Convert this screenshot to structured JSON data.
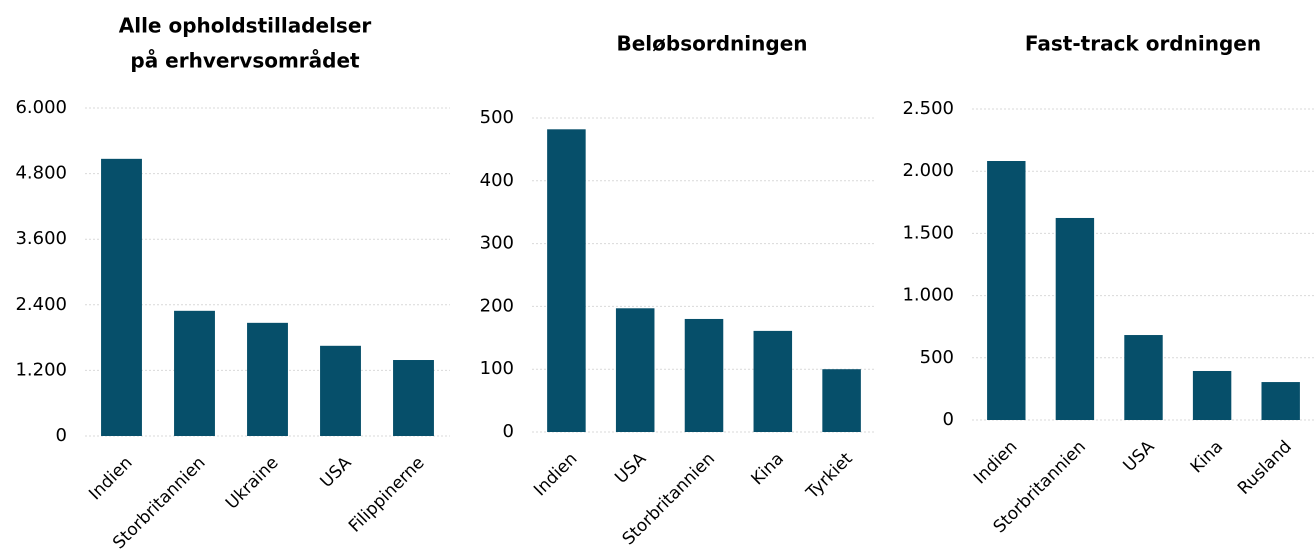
{
  "chart_data": [
    {
      "type": "bar",
      "title": [
        "Alle opholdstilladelser",
        "på erhvervsområdet"
      ],
      "categories": [
        "Indien",
        "Storbritannien",
        "Ukraine",
        "USA",
        "Filippinerne"
      ],
      "values": [
        5070,
        2290,
        2070,
        1650,
        1390
      ],
      "color": "#064f6a",
      "ylim": [
        0,
        6000
      ],
      "yticks": [
        0,
        {
          "value": 1200,
          "label": "1.200"
        },
        {
          "value": 2400,
          "label": "2.400"
        },
        {
          "value": 3600,
          "label": "3.600"
        },
        {
          "value": 4800,
          "label": "4.800"
        },
        {
          "value": 6000,
          "label": "6.000"
        }
      ],
      "grid": true
    },
    {
      "type": "bar",
      "title": [
        "Beløbsordningen"
      ],
      "categories": [
        "Indien",
        "USA",
        "Storbritannien",
        "Kina",
        "Tyrkiet"
      ],
      "values": [
        482,
        197,
        180,
        161,
        100
      ],
      "color": "#064f6a",
      "ylim": [
        0,
        500
      ],
      "yticks": [
        0,
        100,
        200,
        300,
        400,
        500
      ],
      "grid": true
    },
    {
      "type": "bar",
      "title": [
        "Fast-track ordningen"
      ],
      "categories": [
        "Indien",
        "Storbritannien",
        "USA",
        "Kina",
        "Rusland"
      ],
      "values": [
        2082,
        1624,
        683,
        394,
        305
      ],
      "color": "#064f6a",
      "ylim": [
        0,
        2500
      ],
      "yticks": [
        0,
        500,
        {
          "value": 1000,
          "label": "1.000"
        },
        {
          "value": 1500,
          "label": "1.500"
        },
        {
          "value": 2000,
          "label": "2.000"
        },
        {
          "value": 2500,
          "label": "2.500"
        }
      ],
      "grid": true
    }
  ]
}
